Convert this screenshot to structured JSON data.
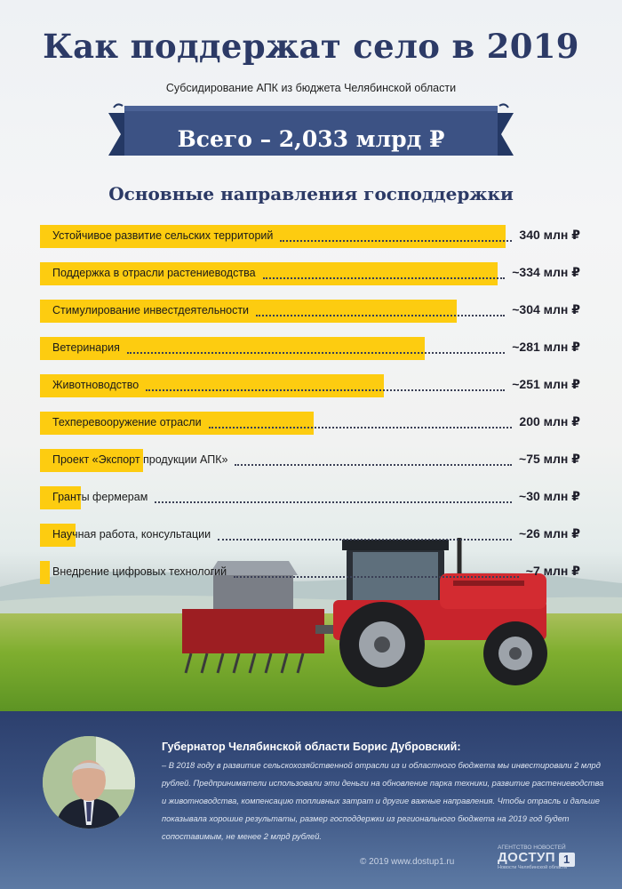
{
  "header": {
    "title": "Как поддержат село в 2019",
    "subtitle": "Субсидирование АПК из бюджета Челябинской области",
    "total": "Всего – 2,033 млрд ₽",
    "section_title": "Основные направления господдержки"
  },
  "chart_data": {
    "type": "bar",
    "orientation": "horizontal",
    "unit": "млн ₽",
    "categories": [
      "Устойчивое развитие сельских территорий",
      "Поддержка в отрасли растениеводства",
      "Стимулирование инвестдеятельности",
      "Ветеринария",
      "Животноводство",
      "Техперевооружение отрасли",
      "Проект «Экспорт продукции АПК»",
      "Гранты фермерам",
      "Научная работа, консультации",
      "Внедрение цифровых технологий"
    ],
    "values": [
      340,
      334,
      304,
      281,
      251,
      200,
      75,
      30,
      26,
      7
    ],
    "value_labels": [
      "340 млн ₽",
      "~334 млн ₽",
      "~304 млн ₽",
      "~281 млн ₽",
      "~251 млн ₽",
      "200 млн ₽",
      "~75 млн ₽",
      "~30 млн ₽",
      "~26 млн ₽",
      "~7 млн ₽"
    ],
    "bar_color": "#fdcc10",
    "grid": false
  },
  "quote": {
    "heading": "Губернатор Челябинской области Борис Дубровский:",
    "text": "– В 2018 году в развитие сельскохозяйственной отрасли из и областного бюджета мы инвестировали 2 млрд рублей. Предприниматели использовали эти деньги на обновление парка техники, развитие растениеводства и животноводства, компенсацию топливных затрат и другие важные направления. Чтобы отрасль и дальше показывала хорошие результаты, размер господдержки из регионального бюджета на 2019 год будет сопоставимым, не менее 2 млрд рублей."
  },
  "footer": {
    "copyright": "© 2019 www.dostup1.ru",
    "logo_top": "АГЕНТСТВО НОВОСТЕЙ",
    "logo_name": "ДОСТУП",
    "logo_box": "1",
    "logo_bottom": "Новости Челябинской области"
  },
  "colors": {
    "title": "#2c3a66",
    "ribbon": "#3c5284",
    "bar": "#fdcc10",
    "panel": "#34497a"
  }
}
